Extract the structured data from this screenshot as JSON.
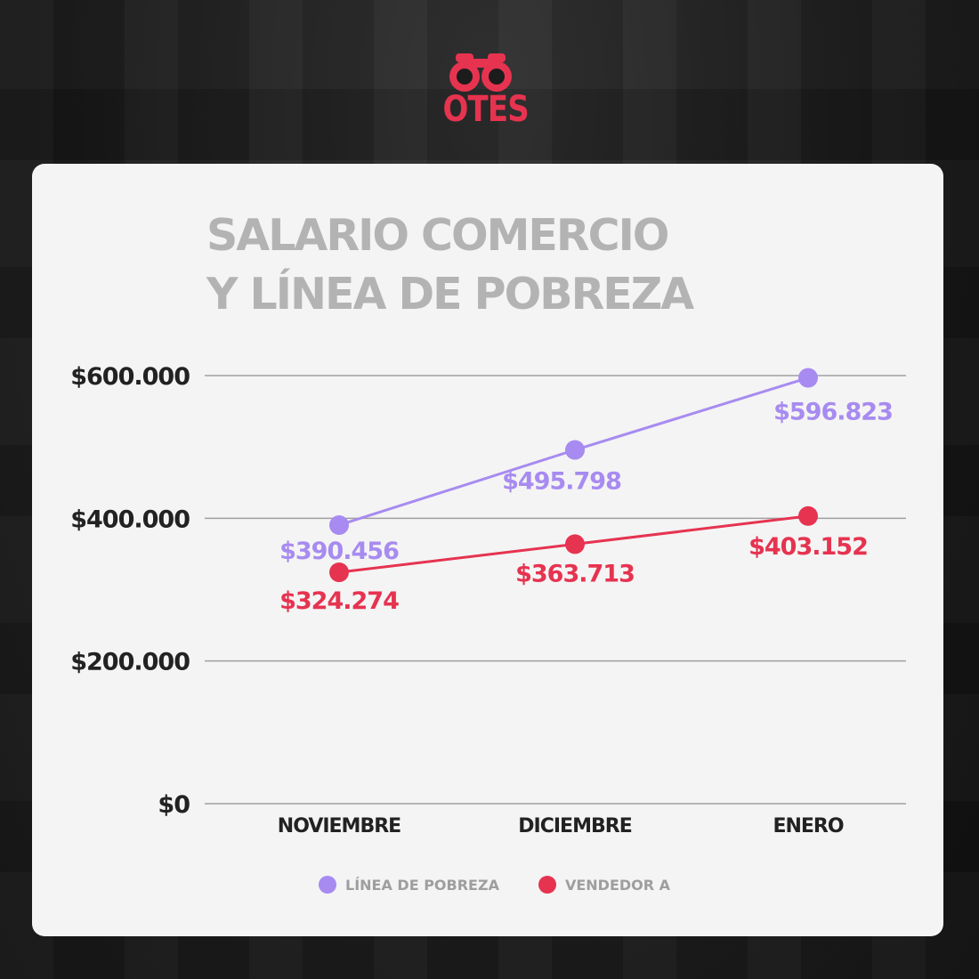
{
  "brand": {
    "name": "OTES",
    "color": "#e63350"
  },
  "chart_data": {
    "type": "line",
    "title": "SALARIO COMERCIO",
    "subtitle": "Y LÍNEA DE POBREZA",
    "categories": [
      "NOVIEMBRE",
      "DICIEMBRE",
      "ENERO"
    ],
    "series": [
      {
        "name": "LÍNEA DE POBREZA",
        "color": "#a78bf0",
        "values": [
          390456,
          495798,
          596823
        ],
        "labels": [
          "$390.456",
          "$495.798",
          "$596.823"
        ]
      },
      {
        "name": "VENDEDOR A",
        "color": "#e63350",
        "values": [
          324274,
          363713,
          403152
        ],
        "labels": [
          "$324.274",
          "$363.713",
          "$403.152"
        ]
      }
    ],
    "ylim": [
      0,
      600000
    ],
    "yticks": [
      0,
      200000,
      400000,
      600000
    ],
    "ytick_labels": [
      "$0",
      "$200.000",
      "$400.000",
      "$600.000"
    ],
    "grid": true,
    "legend_position": "bottom-center"
  }
}
